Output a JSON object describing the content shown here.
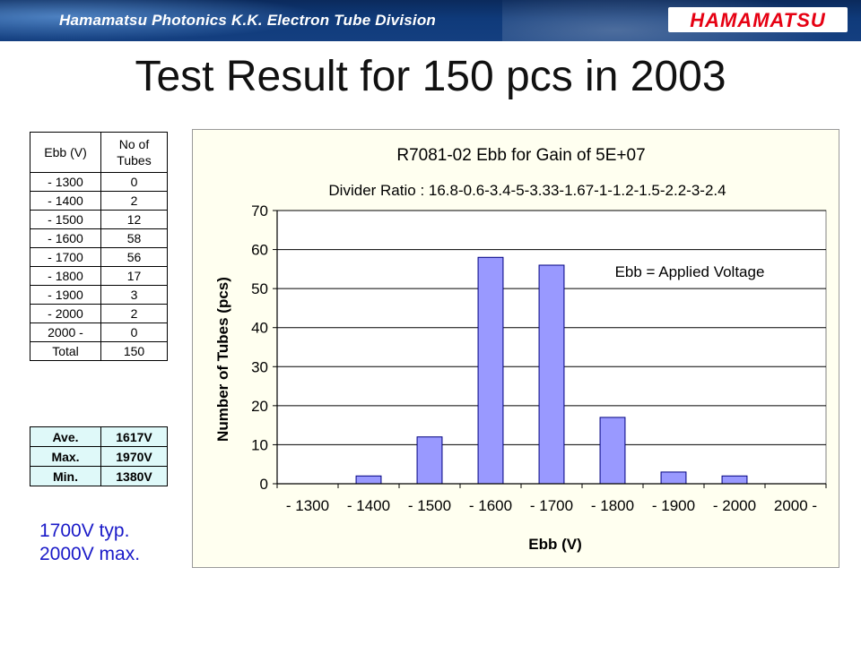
{
  "header": {
    "banner_text": "Hamamatsu Photonics K.K.  Electron Tube Division",
    "logo_text": "HAMAMATSU"
  },
  "page_title": "Test Result for 150 pcs in 2003",
  "tube_table": {
    "headers": [
      "Ebb (V)",
      "No of\nTubes"
    ],
    "rows": [
      {
        "ebb": "- 1300",
        "tubes": "0"
      },
      {
        "ebb": "- 1400",
        "tubes": "2"
      },
      {
        "ebb": "- 1500",
        "tubes": "12"
      },
      {
        "ebb": "- 1600",
        "tubes": "58"
      },
      {
        "ebb": "- 1700",
        "tubes": "56"
      },
      {
        "ebb": "- 1800",
        "tubes": "17"
      },
      {
        "ebb": "- 1900",
        "tubes": "3"
      },
      {
        "ebb": "- 2000",
        "tubes": "2"
      },
      {
        "ebb": "2000 -",
        "tubes": "0"
      },
      {
        "ebb": "Total",
        "tubes": "150"
      }
    ]
  },
  "stats_table": {
    "rows": [
      {
        "label": "Ave.",
        "value": "1617V"
      },
      {
        "label": "Max.",
        "value": "1970V"
      },
      {
        "label": "Min.",
        "value": "1380V"
      }
    ]
  },
  "note": {
    "line1": "1700V typ.",
    "line2": "2000V max."
  },
  "colors": {
    "bar_fill": "#9999ff",
    "bar_stroke": "#000080",
    "chart_bg": "#fffff0",
    "note_text": "#1a1ac8",
    "banner": "#0f3a7a",
    "logo_red": "#e60012",
    "stats_bg": "#dff9f9"
  },
  "chart_data": {
    "type": "bar",
    "title": "R7081-02 Ebb for Gain of 5E+07",
    "subtitle": "Divider Ratio : 16.8-0.6-3.4-5-3.33-1.67-1-1.2-1.5-2.2-3-2.4",
    "annotation": "Ebb = Applied Voltage",
    "xlabel": "Ebb (V)",
    "ylabel": "Number of Tubes (pcs)",
    "categories": [
      "- 1300",
      "- 1400",
      "- 1500",
      "- 1600",
      "- 1700",
      "- 1800",
      "- 1900",
      "- 2000",
      "2000 -"
    ],
    "values": [
      0,
      2,
      12,
      58,
      56,
      17,
      3,
      2,
      0
    ],
    "ylim": [
      0,
      70
    ],
    "yticks": [
      0,
      10,
      20,
      30,
      40,
      50,
      60,
      70
    ],
    "grid": true,
    "legend": "none"
  }
}
